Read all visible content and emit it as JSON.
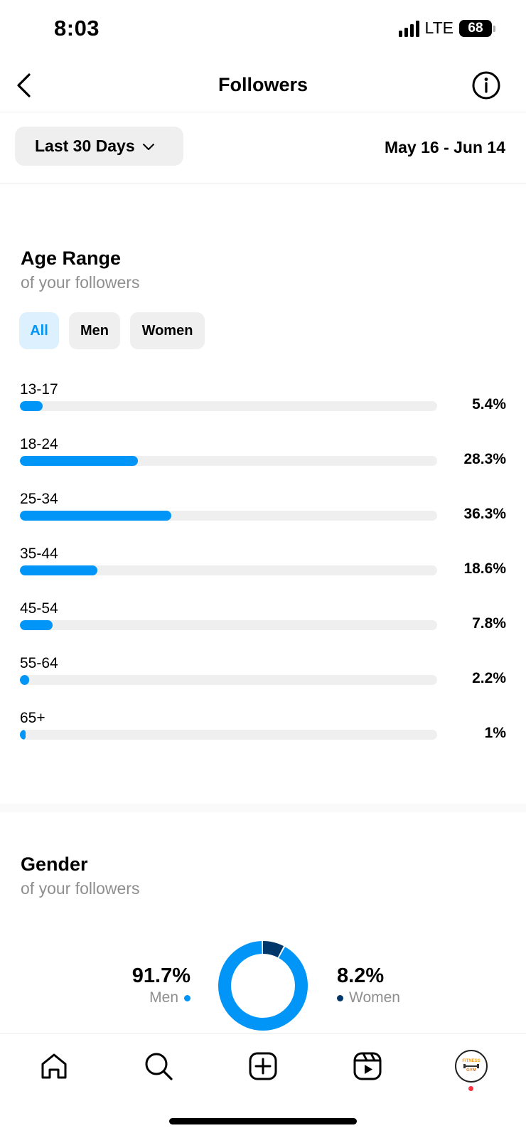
{
  "status_bar": {
    "time": "8:03",
    "network": "LTE",
    "battery": "68"
  },
  "header": {
    "title": "Followers",
    "back_icon": "chevron-left-icon",
    "info_icon": "info-circle-icon"
  },
  "filter": {
    "range_label": "Last 30 Days",
    "dropdown_icon": "chevron-down-icon",
    "date_range": "May 16 - Jun 14"
  },
  "age_section": {
    "title": "Age Range",
    "subtitle": "of your followers",
    "tabs": [
      {
        "label": "All",
        "selected": true
      },
      {
        "label": "Men",
        "selected": false
      },
      {
        "label": "Women",
        "selected": false
      }
    ],
    "rows": [
      {
        "label": "13-17",
        "value": "5.4%",
        "fraction": 0.054
      },
      {
        "label": "18-24",
        "value": "28.3%",
        "fraction": 0.283
      },
      {
        "label": "25-34",
        "value": "36.3%",
        "fraction": 0.363
      },
      {
        "label": "35-44",
        "value": "18.6%",
        "fraction": 0.186
      },
      {
        "label": "45-54",
        "value": "7.8%",
        "fraction": 0.078
      },
      {
        "label": "55-64",
        "value": "2.2%",
        "fraction": 0.022
      },
      {
        "label": "65+",
        "value": "1%",
        "fraction": 0.01
      }
    ]
  },
  "gender_section": {
    "title": "Gender",
    "subtitle": "of your followers",
    "men": {
      "value": "91.7%",
      "label": "Men",
      "fraction": 0.917
    },
    "women": {
      "value": "8.2%",
      "label": "Women",
      "fraction": 0.082
    }
  },
  "tab_bar": {
    "items": [
      {
        "name": "home-icon"
      },
      {
        "name": "search-icon"
      },
      {
        "name": "create-post-icon"
      },
      {
        "name": "reels-icon"
      },
      {
        "name": "profile-avatar"
      }
    ],
    "avatar_text": [
      "FITNESS",
      "GYM"
    ],
    "notification_dot": true
  },
  "colors": {
    "accent_blue": "#0095f6",
    "dark_navy": "#00376b",
    "track_gray": "#efefef",
    "muted_text": "#8e8e8e",
    "selected_tab_bg": "#ddf0fd",
    "notification_red": "#ff3040"
  }
}
